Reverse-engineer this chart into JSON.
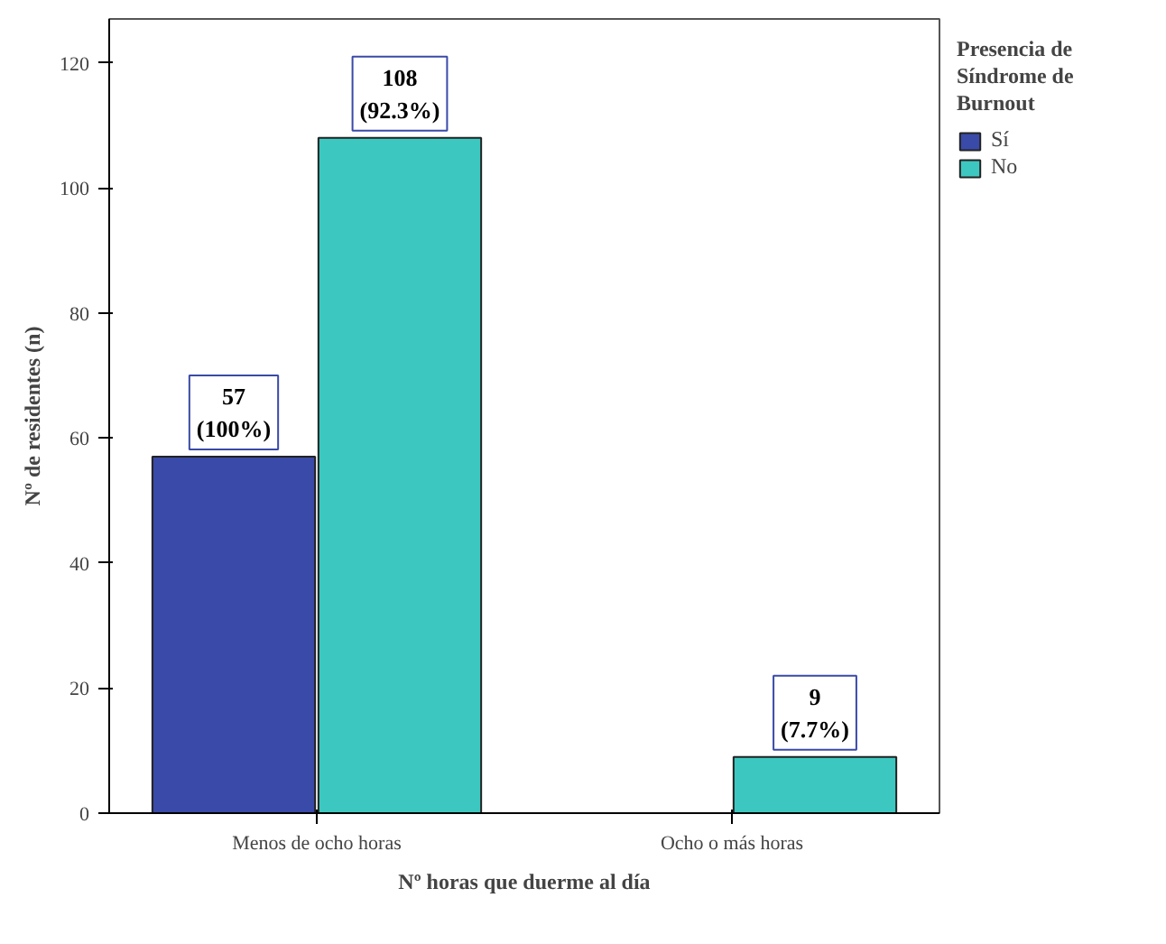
{
  "chart_data": {
    "type": "bar",
    "xlabel": "Nº horas que duerme al día",
    "ylabel": "Nº de residentes (n)",
    "legend_title": "Presencia de Síndrome de Burnout",
    "categories": [
      "Menos de ocho horas",
      "Ocho o más horas"
    ],
    "series": [
      {
        "name": "Sí",
        "color": "#3a4aa8",
        "values": [
          57,
          null
        ],
        "value_labels": [
          "57\n(100%)",
          null
        ]
      },
      {
        "name": "No",
        "color": "#3cc8c0",
        "values": [
          108,
          9
        ],
        "value_labels": [
          "108\n(92.3%)",
          "9\n(7.7%)"
        ]
      }
    ],
    "ylim": [
      0,
      127
    ],
    "yticks": [
      0,
      20,
      40,
      60,
      80,
      100,
      120
    ],
    "grid": false,
    "legend": "right"
  }
}
